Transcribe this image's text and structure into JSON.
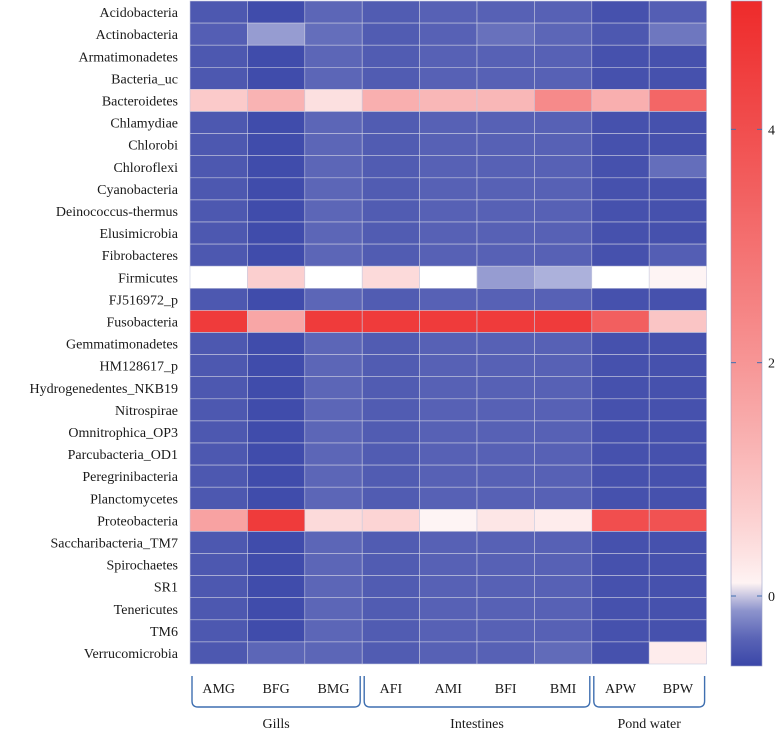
{
  "chart_data": {
    "type": "heatmap",
    "rows": [
      "Acidobacteria",
      "Actinobacteria",
      "Armatimonadetes",
      "Bacteria_uc",
      "Bacteroidetes",
      "Chlamydiae",
      "Chlorobi",
      "Chloroflexi",
      "Cyanobacteria",
      "Deinococcus-thermus",
      "Elusimicrobia",
      "Fibrobacteres",
      "Firmicutes",
      "FJ516972_p",
      "Fusobacteria",
      "Gemmatimonadetes",
      "HM128617_p",
      "Hydrogenedentes_NKB19",
      "Nitrospirae",
      "Omnitrophica_OP3",
      "Parcubacteria_OD1",
      "Peregrinibacteria",
      "Planctomycetes",
      "Proteobacteria",
      "Saccharibacteria_TM7",
      "Spirochaetes",
      "SR1",
      "Tenericutes",
      "TM6",
      "Verrucomicrobia"
    ],
    "columns": [
      "AMG",
      "BFG",
      "BMG",
      "AFI",
      "AMI",
      "BFI",
      "BMI",
      "APW",
      "BPW"
    ],
    "groups": [
      {
        "name": "Gills",
        "columns": [
          "AMG",
          "BFG",
          "BMG"
        ]
      },
      {
        "name": "Intestines",
        "columns": [
          "AFI",
          "AMI",
          "BFI",
          "BMI"
        ]
      },
      {
        "name": "Pond water",
        "columns": [
          "APW",
          "BPW"
        ]
      }
    ],
    "values": [
      [
        -0.45,
        -0.55,
        -0.35,
        -0.42,
        -0.38,
        -0.38,
        -0.38,
        -0.5,
        -0.4
      ],
      [
        -0.4,
        -0.1,
        -0.3,
        -0.42,
        -0.38,
        -0.28,
        -0.35,
        -0.45,
        -0.25
      ],
      [
        -0.45,
        -0.55,
        -0.35,
        -0.42,
        -0.38,
        -0.38,
        -0.38,
        -0.5,
        -0.5
      ],
      [
        -0.45,
        -0.55,
        -0.35,
        -0.42,
        -0.38,
        -0.38,
        -0.38,
        -0.5,
        -0.5
      ],
      [
        0.8,
        1.3,
        0.4,
        1.4,
        1.2,
        1.2,
        2.3,
        1.4,
        3.3
      ],
      [
        -0.45,
        -0.55,
        -0.35,
        -0.42,
        -0.38,
        -0.38,
        -0.38,
        -0.5,
        -0.5
      ],
      [
        -0.45,
        -0.55,
        -0.35,
        -0.42,
        -0.38,
        -0.38,
        -0.38,
        -0.5,
        -0.5
      ],
      [
        -0.45,
        -0.55,
        -0.35,
        -0.42,
        -0.38,
        -0.38,
        -0.38,
        -0.5,
        -0.3
      ],
      [
        -0.45,
        -0.55,
        -0.35,
        -0.42,
        -0.38,
        -0.38,
        -0.38,
        -0.5,
        -0.5
      ],
      [
        -0.45,
        -0.55,
        -0.35,
        -0.42,
        -0.38,
        -0.38,
        -0.38,
        -0.5,
        -0.5
      ],
      [
        -0.45,
        -0.55,
        -0.35,
        -0.42,
        -0.38,
        -0.38,
        -0.38,
        -0.5,
        -0.5
      ],
      [
        -0.45,
        -0.55,
        -0.35,
        -0.42,
        -0.38,
        -0.38,
        -0.38,
        -0.5,
        -0.4
      ],
      [
        0.0,
        0.7,
        0.0,
        0.5,
        0.0,
        -0.1,
        -0.05,
        0.0,
        0.1
      ],
      [
        -0.45,
        -0.55,
        -0.35,
        -0.42,
        -0.38,
        -0.38,
        -0.38,
        -0.5,
        -0.5
      ],
      [
        4.6,
        1.6,
        4.6,
        4.6,
        4.6,
        4.6,
        4.6,
        3.5,
        0.9
      ],
      [
        -0.45,
        -0.55,
        -0.35,
        -0.42,
        -0.38,
        -0.38,
        -0.38,
        -0.5,
        -0.5
      ],
      [
        -0.45,
        -0.55,
        -0.35,
        -0.42,
        -0.38,
        -0.38,
        -0.38,
        -0.5,
        -0.5
      ],
      [
        -0.45,
        -0.55,
        -0.35,
        -0.42,
        -0.38,
        -0.38,
        -0.38,
        -0.5,
        -0.5
      ],
      [
        -0.45,
        -0.55,
        -0.35,
        -0.42,
        -0.38,
        -0.38,
        -0.38,
        -0.5,
        -0.5
      ],
      [
        -0.45,
        -0.55,
        -0.35,
        -0.42,
        -0.38,
        -0.38,
        -0.38,
        -0.5,
        -0.5
      ],
      [
        -0.45,
        -0.55,
        -0.35,
        -0.42,
        -0.38,
        -0.38,
        -0.38,
        -0.5,
        -0.5
      ],
      [
        -0.45,
        -0.55,
        -0.35,
        -0.42,
        -0.38,
        -0.38,
        -0.38,
        -0.5,
        -0.5
      ],
      [
        -0.45,
        -0.55,
        -0.35,
        -0.42,
        -0.38,
        -0.38,
        -0.38,
        -0.5,
        -0.5
      ],
      [
        1.7,
        4.6,
        0.5,
        0.6,
        0.1,
        0.3,
        0.2,
        4.0,
        3.9
      ],
      [
        -0.45,
        -0.55,
        -0.35,
        -0.42,
        -0.38,
        -0.38,
        -0.38,
        -0.5,
        -0.5
      ],
      [
        -0.45,
        -0.55,
        -0.35,
        -0.42,
        -0.38,
        -0.38,
        -0.38,
        -0.5,
        -0.5
      ],
      [
        -0.45,
        -0.55,
        -0.35,
        -0.42,
        -0.38,
        -0.38,
        -0.38,
        -0.5,
        -0.5
      ],
      [
        -0.45,
        -0.55,
        -0.35,
        -0.42,
        -0.38,
        -0.38,
        -0.38,
        -0.5,
        -0.5
      ],
      [
        -0.45,
        -0.55,
        -0.35,
        -0.42,
        -0.38,
        -0.38,
        -0.38,
        -0.5,
        -0.5
      ],
      [
        -0.45,
        -0.35,
        -0.35,
        -0.42,
        -0.38,
        -0.38,
        -0.32,
        -0.5,
        0.2
      ]
    ],
    "colorbar": {
      "min": -0.6,
      "max": 5.1,
      "ticks": [
        0,
        2,
        4
      ],
      "tick_labels": [
        "0",
        "2",
        "4"
      ],
      "color_low": "#3a46a8",
      "color_mid": "#ffffff",
      "color_high": "#ee2b2b"
    }
  }
}
